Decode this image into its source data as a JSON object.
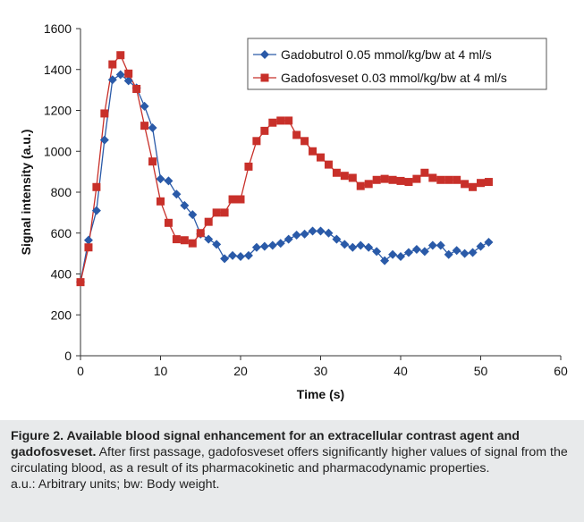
{
  "chart_data": {
    "type": "line",
    "title": "",
    "xlabel": "Time (s)",
    "ylabel": "Signal intensity (a.u.)",
    "xlim": [
      0,
      60
    ],
    "ylim": [
      0,
      1600
    ],
    "xticks": [
      0,
      10,
      20,
      30,
      40,
      50,
      60
    ],
    "yticks": [
      0,
      200,
      400,
      600,
      800,
      1000,
      1200,
      1400,
      1600
    ],
    "xtick_labels": [
      "0",
      "10",
      "20",
      "30",
      "40",
      "50",
      "60"
    ],
    "ytick_labels": [
      "0",
      "200",
      "400",
      "600",
      "800",
      "1000",
      "1200",
      "1400",
      "1600"
    ],
    "grid": false,
    "legend_position": "top-right",
    "series": [
      {
        "name": "Gadobutrol 0.05 mmol/kg/bw at 4 ml/s",
        "color": "#2a5aa8",
        "marker": "diamond",
        "x": [
          0,
          1,
          2,
          3,
          4,
          5,
          6,
          7,
          8,
          9,
          10,
          11,
          12,
          13,
          14,
          15,
          16,
          17,
          18,
          19,
          20,
          21,
          22,
          23,
          24,
          25,
          26,
          27,
          28,
          29,
          30,
          31,
          32,
          33,
          34,
          35,
          36,
          37,
          38,
          39,
          40,
          41,
          42,
          43,
          44,
          45,
          46,
          47,
          48,
          49,
          50,
          51
        ],
        "y": [
          360,
          565,
          710,
          1055,
          1350,
          1375,
          1345,
          1310,
          1220,
          1115,
          865,
          855,
          790,
          735,
          690,
          595,
          570,
          545,
          475,
          490,
          485,
          490,
          530,
          535,
          540,
          550,
          570,
          590,
          595,
          610,
          610,
          600,
          570,
          545,
          530,
          540,
          530,
          510,
          465,
          495,
          485,
          505,
          520,
          510,
          540,
          540,
          495,
          515,
          500,
          505,
          535,
          555
        ]
      },
      {
        "name": "Gadofosveset 0.03 mmol/kg/bw at 4 ml/s",
        "color": "#c8302a",
        "marker": "square",
        "x": [
          0,
          1,
          2,
          3,
          4,
          5,
          6,
          7,
          8,
          9,
          10,
          11,
          12,
          13,
          14,
          15,
          16,
          17,
          18,
          19,
          20,
          21,
          22,
          23,
          24,
          25,
          26,
          27,
          28,
          29,
          30,
          31,
          32,
          33,
          34,
          35,
          36,
          37,
          38,
          39,
          40,
          41,
          42,
          43,
          44,
          45,
          46,
          47,
          48,
          49,
          50,
          51
        ],
        "y": [
          360,
          530,
          825,
          1185,
          1425,
          1470,
          1380,
          1305,
          1125,
          950,
          755,
          650,
          570,
          565,
          550,
          600,
          655,
          700,
          700,
          765,
          765,
          925,
          1050,
          1100,
          1140,
          1150,
          1150,
          1080,
          1050,
          1000,
          970,
          935,
          895,
          880,
          870,
          830,
          840,
          860,
          865,
          860,
          855,
          850,
          865,
          895,
          870,
          860,
          860,
          860,
          840,
          825,
          845,
          850
        ]
      }
    ]
  },
  "caption": {
    "figure_label": "Figure 2. Available blood signal enhancement for an extracellular contrast agent and gadofosveset.",
    "body": "After first passage, gadofosveset offers significantly higher values of signal from the circulating blood, as a result of its pharmacokinetic and pharmacodynamic properties.",
    "footnote": "a.u.: Arbitrary units; bw: Body weight."
  }
}
